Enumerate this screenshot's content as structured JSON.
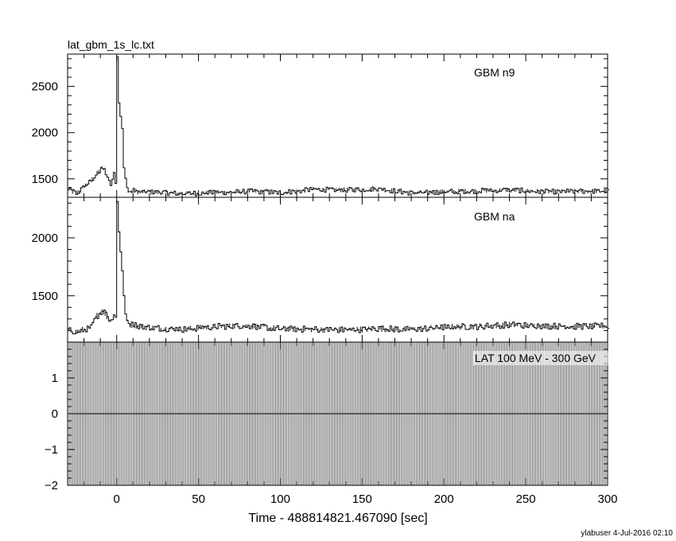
{
  "chart_data": [
    {
      "type": "line",
      "title": "lat_gbm_1s_lc.txt",
      "panel_label": "GBM n9",
      "xlim": [
        -30,
        300
      ],
      "ylim": [
        1300,
        2850
      ],
      "yticks": [
        1500,
        2000,
        2500
      ],
      "series": [
        {
          "x": [
            -30,
            -25,
            -20,
            -16,
            -12,
            -9,
            -6,
            -4,
            -2,
            -1,
            0,
            1,
            2,
            3,
            4,
            5,
            6,
            7,
            8,
            10,
            13,
            20,
            40,
            60,
            80,
            100,
            120,
            140,
            160,
            180,
            200,
            220,
            240,
            260,
            280,
            300
          ],
          "values": [
            1390,
            1340,
            1420,
            1480,
            1560,
            1620,
            1540,
            1440,
            1560,
            1460,
            2830,
            2330,
            2180,
            2050,
            1620,
            1500,
            1400,
            1360,
            1360,
            1370,
            1360,
            1355,
            1340,
            1350,
            1365,
            1350,
            1385,
            1380,
            1390,
            1345,
            1360,
            1370,
            1380,
            1360,
            1365,
            1370
          ]
        }
      ]
    },
    {
      "type": "line",
      "panel_label": "GBM na",
      "xlim": [
        -30,
        300
      ],
      "ylim": [
        1100,
        2350
      ],
      "yticks": [
        1500,
        2000
      ],
      "series": [
        {
          "x": [
            -30,
            -25,
            -20,
            -16,
            -12,
            -9,
            -6,
            -4,
            -2,
            -1,
            0,
            1,
            2,
            3,
            4,
            5,
            6,
            7,
            8,
            10,
            13,
            20,
            40,
            60,
            80,
            100,
            120,
            140,
            160,
            180,
            200,
            220,
            240,
            260,
            280,
            300
          ],
          "values": [
            1200,
            1190,
            1210,
            1230,
            1330,
            1380,
            1320,
            1280,
            1340,
            1310,
            2320,
            2050,
            1880,
            1720,
            1500,
            1350,
            1280,
            1260,
            1250,
            1250,
            1240,
            1225,
            1210,
            1235,
            1240,
            1215,
            1210,
            1205,
            1215,
            1210,
            1230,
            1235,
            1250,
            1240,
            1235,
            1240
          ]
        }
      ]
    },
    {
      "type": "line",
      "panel_label": "LAT 100 MeV - 300 GeV",
      "xlim": [
        -30,
        300
      ],
      "ylim": [
        -2,
        2
      ],
      "yticks": [
        -2,
        -1,
        0,
        1
      ],
      "xticks": [
        0,
        50,
        100,
        150,
        200,
        250,
        300
      ],
      "xlabel": "Time - 488814821.467090 [sec]",
      "series": [
        {
          "x": [
            -30,
            300
          ],
          "values": [
            0,
            0
          ]
        }
      ]
    }
  ],
  "footer": "ylabuser   4-Jul-2016 02:10"
}
